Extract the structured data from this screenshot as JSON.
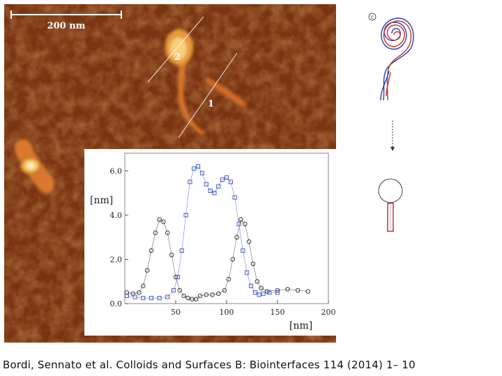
{
  "afm_image": {
    "scale_bar_label": "200 nm",
    "profile_labels": [
      "2",
      "1"
    ]
  },
  "scheme": {
    "panel_label": "c"
  },
  "chart_data": {
    "type": "scatter",
    "xlabel": "[nm]",
    "ylabel": "[nm]",
    "xlim": [
      0,
      200
    ],
    "ylim": [
      0,
      6.8
    ],
    "x_ticks": [
      "50",
      "100",
      "150",
      "200"
    ],
    "y_ticks": [
      "0.0",
      "2.0",
      "4.0",
      "6.0"
    ],
    "grid": false,
    "series": [
      {
        "marker": "circle",
        "color": "#2a2a2a",
        "x": [
          2,
          8,
          14,
          18,
          22,
          26,
          30,
          34,
          38,
          42,
          46,
          50,
          54,
          58,
          62,
          66,
          70,
          74,
          80,
          86,
          92,
          98,
          102,
          106,
          110,
          114,
          118,
          122,
          126,
          130,
          134,
          140,
          150,
          160,
          170,
          180
        ],
        "y": [
          0.5,
          0.45,
          0.5,
          0.8,
          1.5,
          2.4,
          3.2,
          3.8,
          3.7,
          3.2,
          2.2,
          1.2,
          0.6,
          0.35,
          0.25,
          0.2,
          0.2,
          0.35,
          0.4,
          0.4,
          0.45,
          0.6,
          1.1,
          2.0,
          3.0,
          3.8,
          3.6,
          2.8,
          1.8,
          1.0,
          0.7,
          0.55,
          0.6,
          0.65,
          0.6,
          0.55
        ]
      },
      {
        "marker": "square",
        "color": "#3a4fc0",
        "x": [
          2,
          10,
          18,
          26,
          34,
          42,
          48,
          52,
          56,
          60,
          64,
          68,
          72,
          76,
          80,
          84,
          88,
          92,
          96,
          100,
          104,
          108,
          112,
          116,
          120,
          124,
          128,
          132,
          136,
          142,
          150
        ],
        "y": [
          0.35,
          0.3,
          0.25,
          0.25,
          0.25,
          0.3,
          0.6,
          1.2,
          2.4,
          4.0,
          5.5,
          6.1,
          6.2,
          5.9,
          5.4,
          5.1,
          5.0,
          5.3,
          5.6,
          5.7,
          5.5,
          4.8,
          3.6,
          2.4,
          1.4,
          0.8,
          0.5,
          0.4,
          0.45,
          0.5,
          0.5
        ]
      }
    ]
  },
  "caption": "Bordi, Sennato et al. Colloids and Surfaces B: Biointerfaces 114 (2014) 1– 10"
}
